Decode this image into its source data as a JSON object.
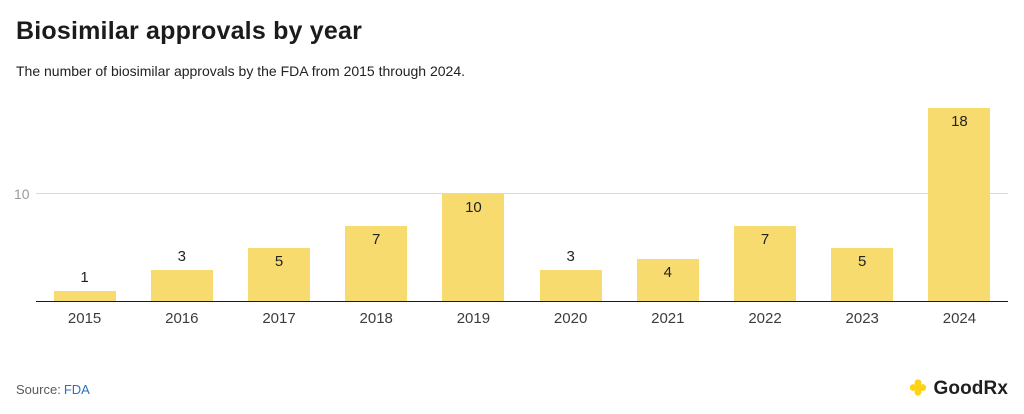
{
  "page": {
    "title": "Biosimilar approvals by year",
    "subtitle": "The number of biosimilar approvals by the FDA from 2015 through 2024.",
    "source_label": "Source:",
    "source_link": "FDA",
    "brand": "GoodRx"
  },
  "chart_data": {
    "type": "bar",
    "title": "Biosimilar approvals by year",
    "categories": [
      "2015",
      "2016",
      "2017",
      "2018",
      "2019",
      "2020",
      "2021",
      "2022",
      "2023",
      "2024"
    ],
    "values": [
      1,
      3,
      5,
      7,
      10,
      3,
      4,
      7,
      5,
      18
    ],
    "xlabel": "",
    "ylabel": "",
    "ylim": [
      0,
      18.5
    ],
    "gridlines": [
      10
    ],
    "grid": "single-horizontal-line",
    "legend": "none",
    "bar_color": "#f8db6e",
    "value_label_color": "#222222",
    "accent_link_color": "#2e72b6",
    "brand_yellow": "#ffd213"
  }
}
